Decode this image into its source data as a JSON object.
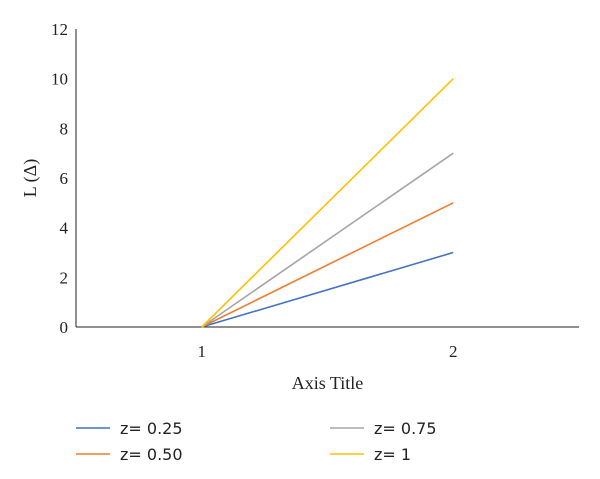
{
  "chart_data": {
    "type": "line",
    "xlabel": "Axis Title",
    "ylabel": "L (Δ)",
    "categories": [
      "1",
      "2"
    ],
    "ylim": [
      0,
      12
    ],
    "yticks": [
      "0",
      "2",
      "4",
      "6",
      "8",
      "10",
      "12"
    ],
    "grid": false,
    "legend_position": "bottom",
    "series": [
      {
        "name": "z= 0.25",
        "values": [
          0,
          3
        ],
        "color": "#4472C4"
      },
      {
        "name": "z= 0.75",
        "values": [
          0,
          7
        ],
        "color": "#A5A5A5"
      },
      {
        "name": "z= 0.50",
        "values": [
          0,
          5
        ],
        "color": "#ED7D31"
      },
      {
        "name": "z= 1",
        "values": [
          0,
          10
        ],
        "color": "#FFC000"
      }
    ]
  }
}
